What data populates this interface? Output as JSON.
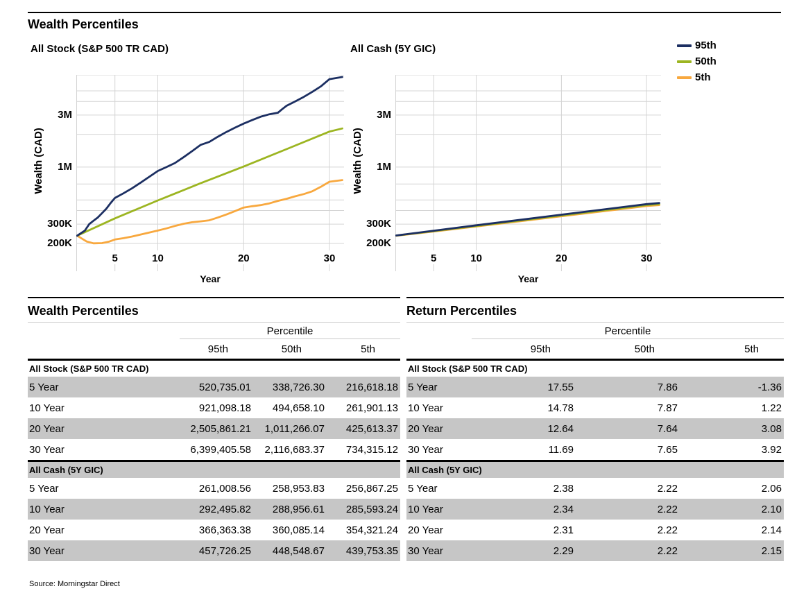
{
  "page": {
    "title": "Wealth Percentiles",
    "source": "Source: Morningstar Direct"
  },
  "colors": {
    "p95": "#1c2f62",
    "p50": "#9cb521",
    "p5": "#f8a83e",
    "grid": "#d4d4d4",
    "row_shade": "#c6c6c6"
  },
  "legend": {
    "items": [
      {
        "label": "95th",
        "color": "#1c2f62"
      },
      {
        "label": "50th",
        "color": "#9cb521"
      },
      {
        "label": "5th",
        "color": "#f8a83e"
      }
    ]
  },
  "chart_data": [
    {
      "type": "line",
      "title": "All Stock (S&P 500 TR CAD)",
      "xlabel": "Year",
      "ylabel": "Wealth (CAD)",
      "x_range": [
        0.5,
        31.7
      ],
      "x_ticks": [
        5,
        10,
        20,
        30
      ],
      "y_scale": "log",
      "y_range": [
        111000,
        7000000
      ],
      "y_ticks": [
        {
          "value": 200000,
          "label": "200K"
        },
        {
          "value": 300000,
          "label": "300K"
        },
        {
          "value": 1000000,
          "label": "1M"
        },
        {
          "value": 3000000,
          "label": "3M"
        }
      ],
      "grid_y_values": [
        200000,
        300000,
        400000,
        500000,
        700000,
        1000000,
        2000000,
        3000000,
        4000000,
        5000000,
        7000000
      ],
      "series": [
        {
          "name": "95th",
          "color": "#1c2f62",
          "points": [
            [
              0.6,
              235000
            ],
            [
              1.5,
              262000
            ],
            [
              2,
              300000
            ],
            [
              2.5,
              322000
            ],
            [
              3,
              345000
            ],
            [
              3.5,
              378000
            ],
            [
              4,
              415000
            ],
            [
              4.5,
              468000
            ],
            [
              5,
              520735
            ],
            [
              6,
              575000
            ],
            [
              7,
              640000
            ],
            [
              8,
              720000
            ],
            [
              9,
              815000
            ],
            [
              10,
              921098
            ],
            [
              11,
              1000000
            ],
            [
              12,
              1090000
            ],
            [
              13,
              1230000
            ],
            [
              14,
              1400000
            ],
            [
              15,
              1600000
            ],
            [
              15.5,
              1650000
            ],
            [
              16,
              1700000
            ],
            [
              17,
              1900000
            ],
            [
              18,
              2100000
            ],
            [
              19,
              2300000
            ],
            [
              20,
              2505861
            ],
            [
              21,
              2700000
            ],
            [
              22,
              2900000
            ],
            [
              23,
              3050000
            ],
            [
              24,
              3150000
            ],
            [
              24.5,
              3400000
            ],
            [
              25,
              3650000
            ],
            [
              26,
              4000000
            ],
            [
              27,
              4400000
            ],
            [
              28,
              4900000
            ],
            [
              29,
              5500000
            ],
            [
              30,
              6399406
            ],
            [
              31.5,
              6700000
            ]
          ]
        },
        {
          "name": "50th",
          "color": "#9cb521",
          "points": [
            [
              0.6,
              235000
            ],
            [
              5,
              338726
            ],
            [
              10,
              494658
            ],
            [
              15,
              712000
            ],
            [
              20,
              1011266
            ],
            [
              25,
              1460000
            ],
            [
              30,
              2116683
            ],
            [
              31.5,
              2260000
            ]
          ]
        },
        {
          "name": "5th",
          "color": "#f8a83e",
          "points": [
            [
              0.6,
              235000
            ],
            [
              1.7,
              208000
            ],
            [
              2.5,
              200000
            ],
            [
              3.5,
              201000
            ],
            [
              4.3,
              207000
            ],
            [
              5,
              216618
            ],
            [
              6,
              223000
            ],
            [
              7,
              231000
            ],
            [
              8,
              241000
            ],
            [
              9,
              251000
            ],
            [
              10,
              261901
            ],
            [
              11,
              274000
            ],
            [
              12,
              289000
            ],
            [
              13,
              302000
            ],
            [
              14,
              312000
            ],
            [
              15,
              318000
            ],
            [
              16,
              325000
            ],
            [
              17,
              345000
            ],
            [
              18,
              368000
            ],
            [
              19,
              395000
            ],
            [
              20,
              425613
            ],
            [
              21,
              438000
            ],
            [
              22,
              448000
            ],
            [
              23,
              465000
            ],
            [
              24,
              490000
            ],
            [
              25,
              512000
            ],
            [
              26,
              540000
            ],
            [
              27,
              566000
            ],
            [
              28,
              600000
            ],
            [
              29,
              660000
            ],
            [
              30,
              734315
            ],
            [
              31.5,
              760000
            ]
          ]
        }
      ]
    },
    {
      "type": "line",
      "title": "All Cash (5Y GIC)",
      "xlabel": "Year",
      "ylabel": "Wealth (CAD)",
      "x_range": [
        0.5,
        31.7
      ],
      "x_ticks": [
        5,
        10,
        20,
        30
      ],
      "y_scale": "log",
      "y_range": [
        111000,
        7000000
      ],
      "y_ticks": [
        {
          "value": 200000,
          "label": "200K"
        },
        {
          "value": 300000,
          "label": "300K"
        },
        {
          "value": 1000000,
          "label": "1M"
        },
        {
          "value": 3000000,
          "label": "3M"
        }
      ],
      "grid_y_values": [
        200000,
        300000,
        400000,
        500000,
        700000,
        1000000,
        2000000,
        3000000,
        4000000,
        5000000,
        7000000
      ],
      "series": [
        {
          "name": "95th",
          "color": "#1c2f62",
          "points": [
            [
              0.6,
              236000
            ],
            [
              5,
              261009
            ],
            [
              10,
              292496
            ],
            [
              20,
              366363
            ],
            [
              30,
              457726
            ],
            [
              31.5,
              468000
            ]
          ]
        },
        {
          "name": "50th",
          "color": "#9cb521",
          "points": [
            [
              0.6,
              235500
            ],
            [
              5,
              258954
            ],
            [
              10,
              288957
            ],
            [
              20,
              360085
            ],
            [
              30,
              448549
            ],
            [
              31.5,
              458000
            ]
          ]
        },
        {
          "name": "5th",
          "color": "#f8a83e",
          "points": [
            [
              0.6,
              235000
            ],
            [
              5,
              256867
            ],
            [
              10,
              285593
            ],
            [
              20,
              354321
            ],
            [
              30,
              439753
            ],
            [
              31.5,
              449000
            ]
          ]
        }
      ]
    }
  ],
  "tables": [
    {
      "title": "Wealth Percentiles",
      "col_group": "Percentile",
      "columns": [
        "95th",
        "50th",
        "5th"
      ],
      "groups": [
        {
          "header": "All Stock (S&P 500 TR CAD)",
          "rows": [
            {
              "label": "5 Year",
              "values": [
                "520,735.01",
                "338,726.30",
                "216,618.18"
              ]
            },
            {
              "label": "10 Year",
              "values": [
                "921,098.18",
                "494,658.10",
                "261,901.13"
              ]
            },
            {
              "label": "20 Year",
              "values": [
                "2,505,861.21",
                "1,011,266.07",
                "425,613.37"
              ]
            },
            {
              "label": "30 Year",
              "values": [
                "6,399,405.58",
                "2,116,683.37",
                "734,315.12"
              ]
            }
          ]
        },
        {
          "header": "All Cash (5Y GIC)",
          "rows": [
            {
              "label": "5 Year",
              "values": [
                "261,008.56",
                "258,953.83",
                "256,867.25"
              ]
            },
            {
              "label": "10 Year",
              "values": [
                "292,495.82",
                "288,956.61",
                "285,593.24"
              ]
            },
            {
              "label": "20 Year",
              "values": [
                "366,363.38",
                "360,085.14",
                "354,321.24"
              ]
            },
            {
              "label": "30 Year",
              "values": [
                "457,726.25",
                "448,548.67",
                "439,753.35"
              ]
            }
          ]
        }
      ]
    },
    {
      "title": "Return Percentiles",
      "col_group": "Percentile",
      "columns": [
        "95th",
        "50th",
        "5th"
      ],
      "groups": [
        {
          "header": "All Stock (S&P 500 TR CAD)",
          "rows": [
            {
              "label": "5 Year",
              "values": [
                "17.55",
                "7.86",
                "-1.36"
              ]
            },
            {
              "label": "10 Year",
              "values": [
                "14.78",
                "7.87",
                "1.22"
              ]
            },
            {
              "label": "20 Year",
              "values": [
                "12.64",
                "7.64",
                "3.08"
              ]
            },
            {
              "label": "30 Year",
              "values": [
                "11.69",
                "7.65",
                "3.92"
              ]
            }
          ]
        },
        {
          "header": "All Cash (5Y GIC)",
          "rows": [
            {
              "label": "5 Year",
              "values": [
                "2.38",
                "2.22",
                "2.06"
              ]
            },
            {
              "label": "10 Year",
              "values": [
                "2.34",
                "2.22",
                "2.10"
              ]
            },
            {
              "label": "20 Year",
              "values": [
                "2.31",
                "2.22",
                "2.14"
              ]
            },
            {
              "label": "30 Year",
              "values": [
                "2.29",
                "2.22",
                "2.15"
              ]
            }
          ]
        }
      ]
    }
  ]
}
